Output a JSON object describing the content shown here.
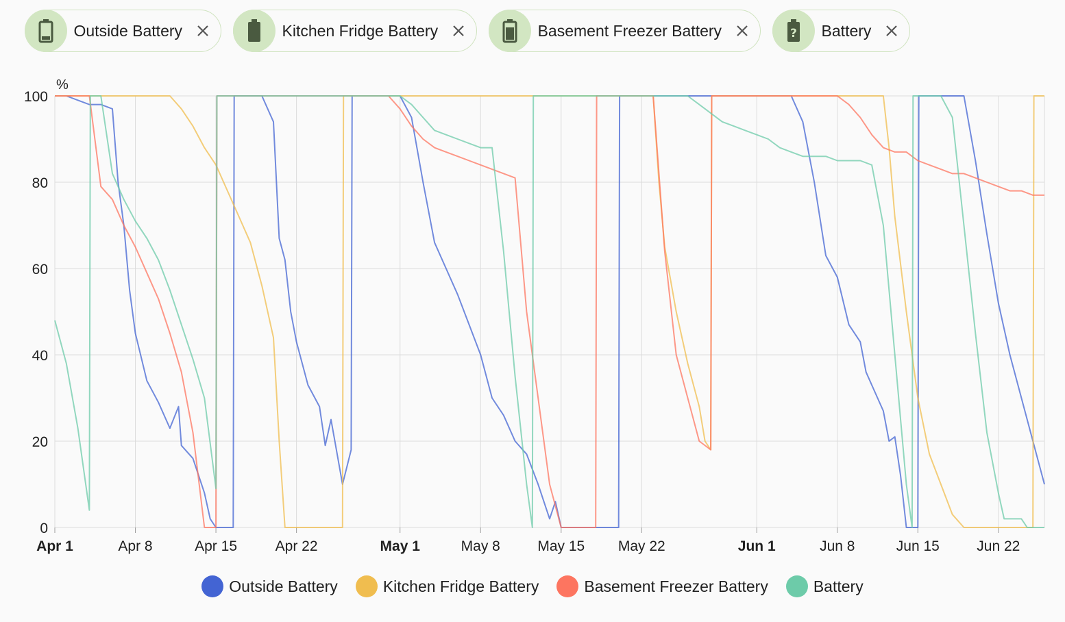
{
  "chips": [
    {
      "label": "Outside Battery",
      "icon": "battery-low-icon"
    },
    {
      "label": "Kitchen Fridge Battery",
      "icon": "battery-full-icon"
    },
    {
      "label": "Basement Freezer Battery",
      "icon": "battery-medium-icon"
    },
    {
      "label": "Battery",
      "icon": "battery-unknown-icon"
    }
  ],
  "colors": {
    "Outside Battery": "#4364d3",
    "Kitchen Fridge Battery": "#f0bd4f",
    "Basement Freezer Battery": "#fd7560",
    "Battery": "#6dcba9"
  },
  "chart_data": {
    "type": "line",
    "ylabel": "%",
    "ylim": [
      0,
      100
    ],
    "xlim": [
      "2024-04-01",
      "2024-06-26"
    ],
    "yticks": [
      0,
      20,
      40,
      60,
      80,
      100
    ],
    "xticks": [
      "Apr 1",
      "Apr 8",
      "Apr 15",
      "Apr 22",
      "May 1",
      "May 8",
      "May 15",
      "May 22",
      "Jun 1",
      "Jun 8",
      "Jun 15",
      "Jun 22"
    ],
    "xtick_dates": [
      "2024-04-01",
      "2024-04-08",
      "2024-04-15",
      "2024-04-22",
      "2024-05-01",
      "2024-05-08",
      "2024-05-15",
      "2024-05-22",
      "2024-06-01",
      "2024-06-08",
      "2024-06-15",
      "2024-06-22"
    ],
    "bold_ticks": [
      "Apr 1",
      "May 1",
      "Jun 1"
    ],
    "grid": true,
    "legend_position": "bottom",
    "series": [
      {
        "name": "Outside Battery",
        "points": [
          [
            "2024-04-01",
            100
          ],
          [
            "2024-04-02",
            100
          ],
          [
            "2024-04-03",
            99
          ],
          [
            "2024-04-04",
            98
          ],
          [
            "2024-04-05",
            98
          ],
          [
            "2024-04-06",
            97
          ],
          [
            "2024-04-06 12:00",
            80
          ],
          [
            "2024-04-07",
            70
          ],
          [
            "2024-04-07 12:00",
            55
          ],
          [
            "2024-04-08",
            45
          ],
          [
            "2024-04-09",
            34
          ],
          [
            "2024-04-10",
            29
          ],
          [
            "2024-04-11",
            23
          ],
          [
            "2024-04-11 18:00",
            28
          ],
          [
            "2024-04-12",
            19
          ],
          [
            "2024-04-13",
            16
          ],
          [
            "2024-04-14",
            8
          ],
          [
            "2024-04-14 12:00",
            2
          ],
          [
            "2024-04-15",
            0
          ],
          [
            "2024-04-16 12:00",
            0
          ],
          [
            "2024-04-16 14:00",
            100
          ],
          [
            "2024-04-18",
            100
          ],
          [
            "2024-04-19",
            100
          ],
          [
            "2024-04-20",
            94
          ],
          [
            "2024-04-20 12:00",
            67
          ],
          [
            "2024-04-21",
            62
          ],
          [
            "2024-04-21 12:00",
            50
          ],
          [
            "2024-04-22",
            43
          ],
          [
            "2024-04-23",
            33
          ],
          [
            "2024-04-24",
            28
          ],
          [
            "2024-04-24 12:00",
            19
          ],
          [
            "2024-04-25",
            25
          ],
          [
            "2024-04-26",
            10
          ],
          [
            "2024-04-26 18:00",
            18
          ],
          [
            "2024-04-26 20:00",
            100
          ],
          [
            "2024-05-01",
            100
          ],
          [
            "2024-05-02",
            95
          ],
          [
            "2024-05-03",
            80
          ],
          [
            "2024-05-04",
            66
          ],
          [
            "2024-05-05",
            60
          ],
          [
            "2024-05-06",
            54
          ],
          [
            "2024-05-07",
            47
          ],
          [
            "2024-05-08",
            40
          ],
          [
            "2024-05-09",
            30
          ],
          [
            "2024-05-10",
            26
          ],
          [
            "2024-05-11",
            20
          ],
          [
            "2024-05-12",
            17
          ],
          [
            "2024-05-13",
            10
          ],
          [
            "2024-05-14",
            2
          ],
          [
            "2024-05-14 12:00",
            6
          ],
          [
            "2024-05-15",
            0
          ],
          [
            "2024-05-20",
            0
          ],
          [
            "2024-05-20 02:00",
            100
          ],
          [
            "2024-05-22",
            100
          ],
          [
            "2024-05-28",
            100
          ],
          [
            "2024-05-30",
            100
          ],
          [
            "2024-06-01",
            100
          ],
          [
            "2024-06-04",
            100
          ],
          [
            "2024-06-05",
            94
          ],
          [
            "2024-06-06",
            80
          ],
          [
            "2024-06-07",
            63
          ],
          [
            "2024-06-08",
            58
          ],
          [
            "2024-06-09",
            47
          ],
          [
            "2024-06-10",
            43
          ],
          [
            "2024-06-10 12:00",
            36
          ],
          [
            "2024-06-11",
            33
          ],
          [
            "2024-06-12",
            27
          ],
          [
            "2024-06-12 12:00",
            20
          ],
          [
            "2024-06-13",
            21
          ],
          [
            "2024-06-13 12:00",
            12
          ],
          [
            "2024-06-14",
            0
          ],
          [
            "2024-06-15",
            0
          ],
          [
            "2024-06-15 02:00",
            100
          ],
          [
            "2024-06-16",
            100
          ],
          [
            "2024-06-17",
            100
          ],
          [
            "2024-06-18",
            100
          ],
          [
            "2024-06-19",
            100
          ],
          [
            "2024-06-20",
            85
          ],
          [
            "2024-06-21",
            68
          ],
          [
            "2024-06-22",
            52
          ],
          [
            "2024-06-23",
            40
          ],
          [
            "2024-06-24",
            30
          ],
          [
            "2024-06-25",
            20
          ],
          [
            "2024-06-26",
            10
          ]
        ]
      },
      {
        "name": "Kitchen Fridge Battery",
        "points": [
          [
            "2024-04-01",
            100
          ],
          [
            "2024-04-11",
            100
          ],
          [
            "2024-04-12",
            97
          ],
          [
            "2024-04-13",
            93
          ],
          [
            "2024-04-14",
            88
          ],
          [
            "2024-04-15",
            84
          ],
          [
            "2024-04-16",
            78
          ],
          [
            "2024-04-17",
            72
          ],
          [
            "2024-04-18",
            66
          ],
          [
            "2024-04-19",
            56
          ],
          [
            "2024-04-20",
            44
          ],
          [
            "2024-04-20 12:00",
            20
          ],
          [
            "2024-04-21",
            0
          ],
          [
            "2024-04-26",
            0
          ],
          [
            "2024-04-26 02:00",
            100
          ],
          [
            "2024-05-23",
            100
          ],
          [
            "2024-05-23 12:00",
            80
          ],
          [
            "2024-05-24",
            65
          ],
          [
            "2024-05-25",
            50
          ],
          [
            "2024-05-26",
            38
          ],
          [
            "2024-05-27",
            28
          ],
          [
            "2024-05-27 12:00",
            20
          ],
          [
            "2024-05-28",
            18
          ],
          [
            "2024-05-28 02:00",
            100
          ],
          [
            "2024-06-12",
            100
          ],
          [
            "2024-06-12 12:00",
            88
          ],
          [
            "2024-06-13",
            72
          ],
          [
            "2024-06-14",
            50
          ],
          [
            "2024-06-15",
            30
          ],
          [
            "2024-06-16",
            17
          ],
          [
            "2024-06-17",
            10
          ],
          [
            "2024-06-18",
            3
          ],
          [
            "2024-06-19",
            0
          ],
          [
            "2024-06-25",
            0
          ],
          [
            "2024-06-25 02:00",
            100
          ],
          [
            "2024-06-26",
            100
          ]
        ]
      },
      {
        "name": "Basement Freezer Battery",
        "points": [
          [
            "2024-04-01",
            100
          ],
          [
            "2024-04-04",
            100
          ],
          [
            "2024-04-05",
            79
          ],
          [
            "2024-04-06",
            76
          ],
          [
            "2024-04-07",
            70
          ],
          [
            "2024-04-08",
            65
          ],
          [
            "2024-04-09",
            59
          ],
          [
            "2024-04-10",
            53
          ],
          [
            "2024-04-11",
            45
          ],
          [
            "2024-04-12",
            36
          ],
          [
            "2024-04-13",
            22
          ],
          [
            "2024-04-14",
            0
          ],
          [
            "2024-04-15",
            0
          ],
          [
            "2024-04-15 02:00",
            100
          ],
          [
            "2024-04-30",
            100
          ],
          [
            "2024-05-01",
            97
          ],
          [
            "2024-05-02",
            93
          ],
          [
            "2024-05-03",
            90
          ],
          [
            "2024-05-04",
            88
          ],
          [
            "2024-05-05",
            87
          ],
          [
            "2024-05-06",
            86
          ],
          [
            "2024-05-07",
            85
          ],
          [
            "2024-05-08",
            84
          ],
          [
            "2024-05-09",
            83
          ],
          [
            "2024-05-11",
            81
          ],
          [
            "2024-05-12",
            50
          ],
          [
            "2024-05-13",
            30
          ],
          [
            "2024-05-14",
            10
          ],
          [
            "2024-05-15",
            0
          ],
          [
            "2024-05-18",
            0
          ],
          [
            "2024-05-18 02:00",
            100
          ],
          [
            "2024-05-21",
            100
          ],
          [
            "2024-05-22",
            100
          ],
          [
            "2024-05-23",
            100
          ],
          [
            "2024-05-24",
            64
          ],
          [
            "2024-05-25",
            40
          ],
          [
            "2024-05-26",
            30
          ],
          [
            "2024-05-27",
            20
          ],
          [
            "2024-05-28",
            18
          ],
          [
            "2024-05-28 02:00",
            100
          ],
          [
            "2024-06-06",
            100
          ],
          [
            "2024-06-08",
            100
          ],
          [
            "2024-06-09",
            98
          ],
          [
            "2024-06-10",
            95
          ],
          [
            "2024-06-11",
            91
          ],
          [
            "2024-06-12",
            88
          ],
          [
            "2024-06-13",
            87
          ],
          [
            "2024-06-14",
            87
          ],
          [
            "2024-06-15",
            85
          ],
          [
            "2024-06-16",
            84
          ],
          [
            "2024-06-17",
            83
          ],
          [
            "2024-06-18",
            82
          ],
          [
            "2024-06-19",
            82
          ],
          [
            "2024-06-20",
            81
          ],
          [
            "2024-06-21",
            80
          ],
          [
            "2024-06-22",
            79
          ],
          [
            "2024-06-23",
            78
          ],
          [
            "2024-06-24",
            78
          ],
          [
            "2024-06-25",
            77
          ],
          [
            "2024-06-26",
            77
          ]
        ]
      },
      {
        "name": "Battery",
        "points": [
          [
            "2024-04-01",
            48
          ],
          [
            "2024-04-02",
            38
          ],
          [
            "2024-04-03",
            23
          ],
          [
            "2024-04-04",
            4
          ],
          [
            "2024-04-04 02:00",
            100
          ],
          [
            "2024-04-05",
            100
          ],
          [
            "2024-04-06",
            82
          ],
          [
            "2024-04-07",
            76
          ],
          [
            "2024-04-08",
            71
          ],
          [
            "2024-04-09",
            67
          ],
          [
            "2024-04-10",
            62
          ],
          [
            "2024-04-11",
            55
          ],
          [
            "2024-04-12",
            47
          ],
          [
            "2024-04-13",
            39
          ],
          [
            "2024-04-14",
            30
          ],
          [
            "2024-04-15",
            9
          ],
          [
            "2024-04-15 02:00",
            100
          ],
          [
            "2024-05-01",
            100
          ],
          [
            "2024-05-02",
            98
          ],
          [
            "2024-05-03",
            95
          ],
          [
            "2024-05-04",
            92
          ],
          [
            "2024-05-05",
            91
          ],
          [
            "2024-05-06",
            90
          ],
          [
            "2024-05-07",
            89
          ],
          [
            "2024-05-08",
            88
          ],
          [
            "2024-05-09",
            88
          ],
          [
            "2024-05-10",
            64
          ],
          [
            "2024-05-11",
            35
          ],
          [
            "2024-05-12",
            10
          ],
          [
            "2024-05-12 12:00",
            0
          ],
          [
            "2024-05-12 14:00",
            100
          ],
          [
            "2024-05-24",
            100
          ],
          [
            "2024-05-26",
            100
          ],
          [
            "2024-05-27",
            98
          ],
          [
            "2024-05-28",
            96
          ],
          [
            "2024-05-29",
            94
          ],
          [
            "2024-05-30",
            93
          ],
          [
            "2024-05-31",
            92
          ],
          [
            "2024-06-01",
            91
          ],
          [
            "2024-06-02",
            90
          ],
          [
            "2024-06-03",
            88
          ],
          [
            "2024-06-04",
            87
          ],
          [
            "2024-06-05",
            86
          ],
          [
            "2024-06-06",
            86
          ],
          [
            "2024-06-07",
            86
          ],
          [
            "2024-06-08",
            85
          ],
          [
            "2024-06-09",
            85
          ],
          [
            "2024-06-10",
            85
          ],
          [
            "2024-06-11",
            84
          ],
          [
            "2024-06-12",
            70
          ],
          [
            "2024-06-13",
            40
          ],
          [
            "2024-06-14",
            10
          ],
          [
            "2024-06-14 12:00",
            0
          ],
          [
            "2024-06-14 14:00",
            100
          ],
          [
            "2024-06-16",
            100
          ],
          [
            "2024-06-17",
            100
          ],
          [
            "2024-06-18",
            95
          ],
          [
            "2024-06-19",
            70
          ],
          [
            "2024-06-20",
            45
          ],
          [
            "2024-06-21",
            22
          ],
          [
            "2024-06-22",
            8
          ],
          [
            "2024-06-22 12:00",
            2
          ],
          [
            "2024-06-24",
            2
          ],
          [
            "2024-06-24 12:00",
            0
          ],
          [
            "2024-06-26",
            0
          ]
        ]
      }
    ]
  }
}
